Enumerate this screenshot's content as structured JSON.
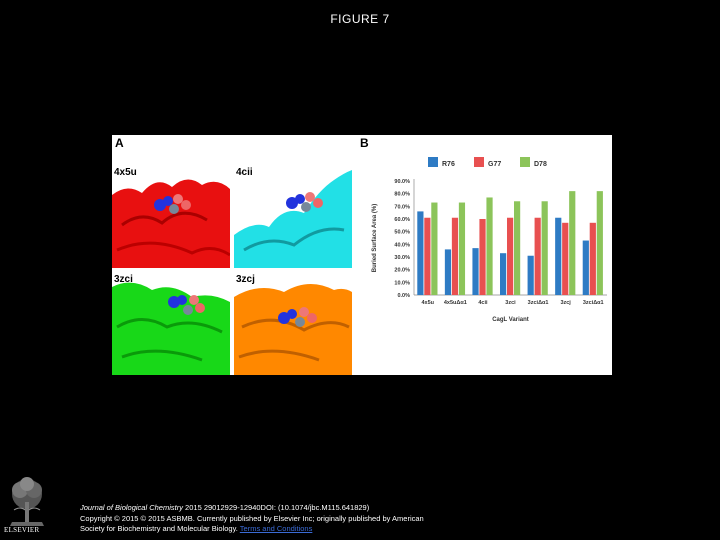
{
  "page": {
    "title": "FIGURE 7"
  },
  "figure": {
    "panel_a": {
      "letter": "A",
      "structures": [
        {
          "label": "4x5u",
          "color": "#e81010"
        },
        {
          "label": "4cii",
          "color": "#22e0e6"
        },
        {
          "label": "3zci",
          "color": "#18d818"
        },
        {
          "label": "3zcj",
          "color": "#ff8800"
        }
      ]
    },
    "panel_b": {
      "letter": "B"
    }
  },
  "chart_data": {
    "type": "bar",
    "categories": [
      "4x5u",
      "4x5uΔα1",
      "4cii",
      "3zci",
      "3zciΔα1",
      "3zcj",
      "3zciΔα1"
    ],
    "series": [
      {
        "name": "R76",
        "color": "#2e7bc4",
        "values": [
          66,
          36,
          37,
          33,
          31,
          61,
          43
        ]
      },
      {
        "name": "G77",
        "color": "#e85050",
        "values": [
          61,
          61,
          60,
          61,
          61,
          57,
          57
        ]
      },
      {
        "name": "D78",
        "color": "#8cc45a",
        "values": [
          73,
          73,
          77,
          74,
          74,
          82,
          82
        ]
      }
    ],
    "yticks": [
      "0.0%",
      "10.0%",
      "20.0%",
      "30.0%",
      "40.0%",
      "50.0%",
      "60.0%",
      "70.0%",
      "80.0%",
      "90.0%"
    ],
    "xlabel": "CagL Variant",
    "ylabel": "Buried Surface Area (%)",
    "ylim": [
      0,
      90
    ],
    "legend_position": "top"
  },
  "footer": {
    "journal": "Journal of Biological Chemistry",
    "citation": " 2015 29012929-12940DOI: (10.1074/jbc.M115.641829)",
    "copyright": "Copyright © 2015 © 2015 ASBMB. Currently published by Elsevier Inc; originally published by American",
    "society": "Society for Biochemistry and Molecular Biology. ",
    "terms": "Terms and Conditions"
  },
  "logo": {
    "text": "ELSEVIER"
  }
}
